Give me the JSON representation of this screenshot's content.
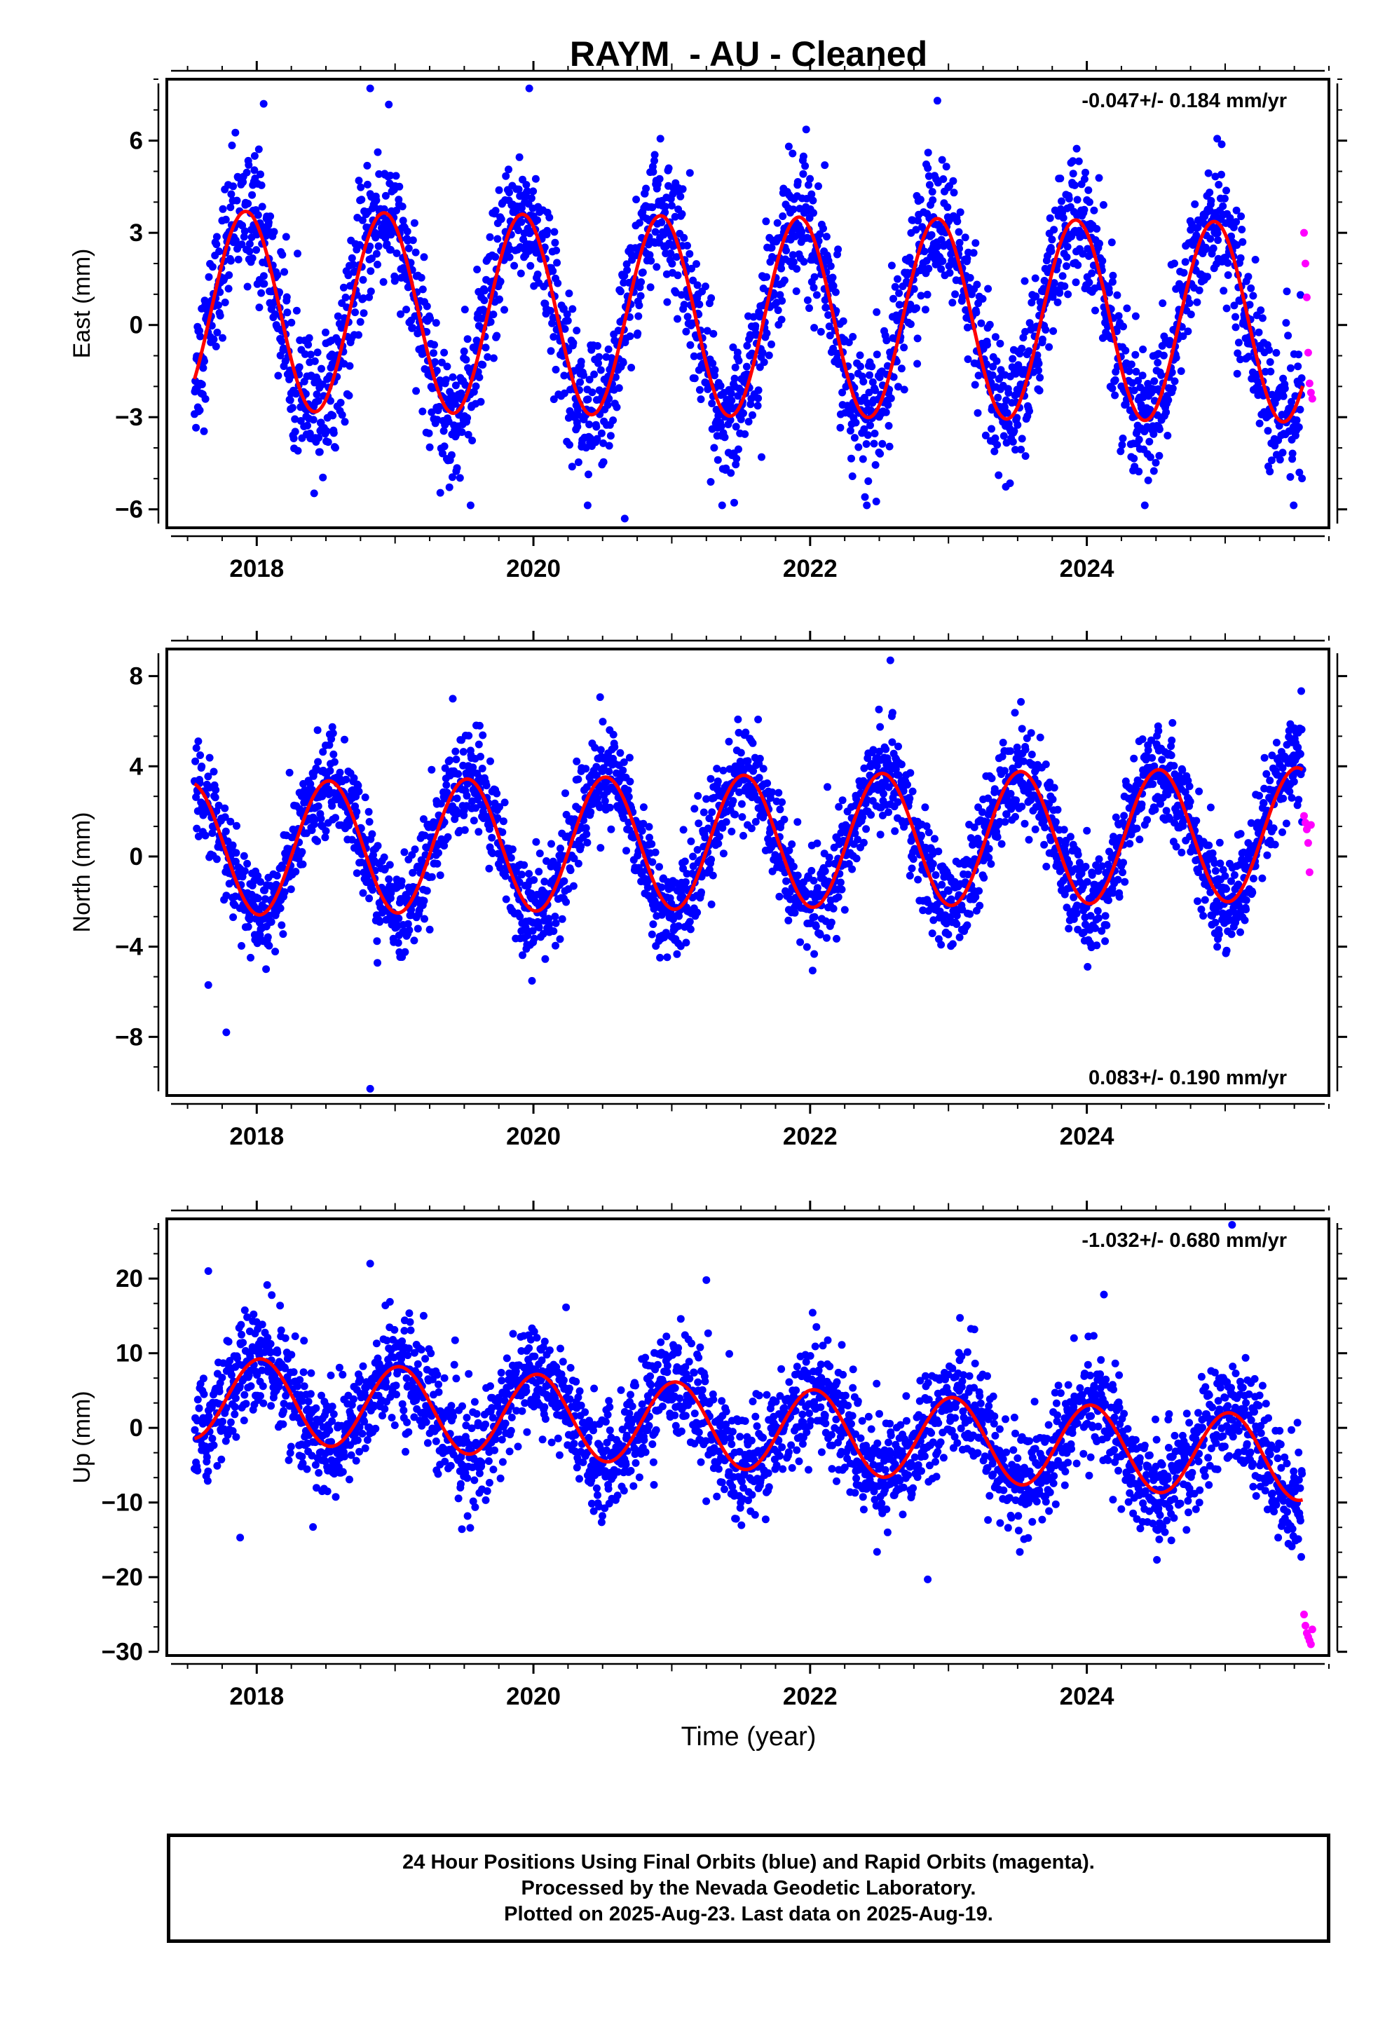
{
  "title": "RAYM  - AU - Cleaned",
  "xlabel": "Time (year)",
  "colors": {
    "final": "#0000ff",
    "rapid": "#ff00ff",
    "model": "#ff0000",
    "axis": "#000000"
  },
  "footer": {
    "line1": "24 Hour Positions Using Final Orbits (blue) and Rapid Orbits (magenta).",
    "line2": "Processed by the Nevada Geodetic Laboratory.",
    "line3": "Plotted on 2025-Aug-23. Last data on 2025-Aug-19."
  },
  "chart_data": [
    {
      "type": "scatter",
      "name": "east",
      "ylabel": "East (mm)",
      "rate_label": "-0.047+/- 0.184 mm/yr",
      "rate_position": "top-right",
      "xlim": [
        2017.35,
        2025.75
      ],
      "ylim": [
        -6.6,
        8.0
      ],
      "yticks": [
        -6,
        -3,
        0,
        3,
        6
      ],
      "xticks": [
        2018,
        2020,
        2022,
        2024
      ],
      "model": {
        "offset": 0.28,
        "slope": -0.047,
        "annual_amp": 3.25,
        "annual_peak": 2017.92,
        "trend_t0": 2021.5
      },
      "noise_sd": 1.1,
      "rapid_points": {
        "x": [
          2025.57,
          2025.58,
          2025.59,
          2025.6,
          2025.61,
          2025.62,
          2025.63
        ],
        "y": [
          3.0,
          2.0,
          0.9,
          -0.9,
          -1.9,
          -2.2,
          -2.4
        ]
      },
      "outliers": {
        "x": [
          2018.82,
          2019.97,
          2020.66,
          2018.05,
          2022.92
        ],
        "y": [
          7.7,
          7.7,
          -6.3,
          7.2,
          7.3
        ]
      }
    },
    {
      "type": "scatter",
      "name": "north",
      "ylabel": "North (mm)",
      "rate_label": "0.083+/- 0.190 mm/yr",
      "rate_position": "bottom-right",
      "xlim": [
        2017.35,
        2025.75
      ],
      "ylim": [
        -10.6,
        9.2
      ],
      "yticks": [
        -8,
        -4,
        0,
        4,
        8
      ],
      "xticks": [
        2018,
        2020,
        2022,
        2024
      ],
      "model": {
        "offset": 0.65,
        "slope": 0.083,
        "annual_amp": 2.95,
        "annual_peak": 2017.52,
        "trend_t0": 2021.5
      },
      "noise_sd": 1.1,
      "rapid_points": {
        "x": [
          2025.57,
          2025.58,
          2025.59,
          2025.6,
          2025.61,
          2025.62
        ],
        "y": [
          1.8,
          1.5,
          1.2,
          0.6,
          -0.7,
          1.4
        ]
      },
      "outliers": {
        "x": [
          2022.58,
          2018.82,
          2017.78,
          2017.65
        ],
        "y": [
          8.7,
          -10.3,
          -7.8,
          -5.7
        ]
      }
    },
    {
      "type": "scatter",
      "name": "up",
      "ylabel": "Up (mm)",
      "rate_label": "-1.032+/- 0.680 mm/yr",
      "rate_position": "top-right",
      "xlim": [
        2017.35,
        2025.75
      ],
      "ylim": [
        -30.5,
        28.0
      ],
      "yticks": [
        -30,
        -20,
        -10,
        0,
        10,
        20
      ],
      "xticks": [
        2018,
        2020,
        2022,
        2024
      ],
      "model": {
        "offset": 0.0,
        "slope": -1.032,
        "annual_amp": 5.6,
        "annual_peak": 2018.03,
        "trend_t0": 2021.55
      },
      "noise_sd": 3.7,
      "rapid_points": {
        "x": [
          2025.57,
          2025.58,
          2025.59,
          2025.6,
          2025.61,
          2025.62,
          2025.63
        ],
        "y": [
          -25.0,
          -26.5,
          -27.5,
          -28.0,
          -28.5,
          -29.0,
          -27.0
        ]
      },
      "outliers": {
        "x": [
          2025.05,
          2018.82,
          2017.65,
          2022.85,
          2021.25,
          2017.88
        ],
        "y": [
          27.2,
          22.0,
          21.0,
          -20.3,
          19.8,
          -14.7
        ]
      }
    }
  ]
}
